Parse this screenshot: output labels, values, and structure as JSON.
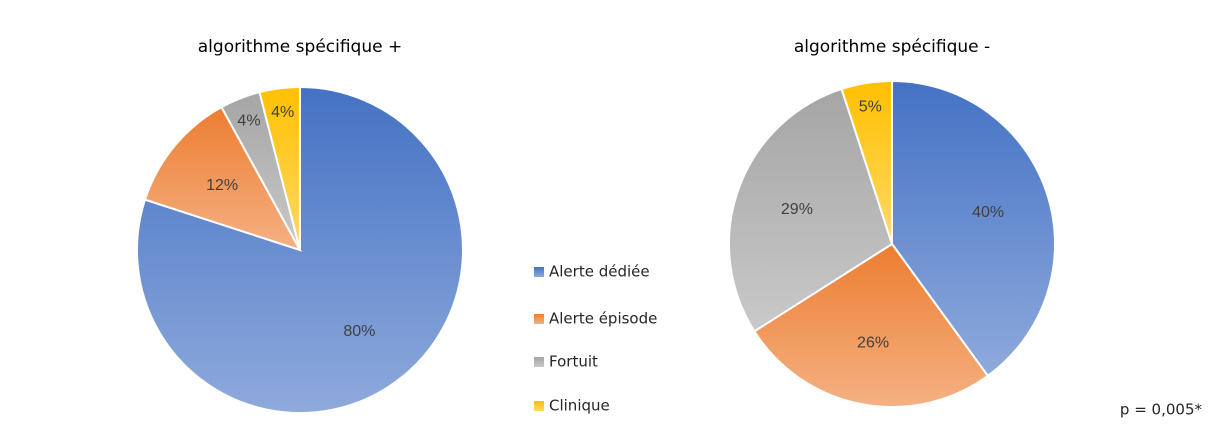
{
  "chart_data": [
    {
      "type": "pie",
      "title": "algorithme spécifique +",
      "categories": [
        "Alerte dédiée",
        "Alerte épisode",
        "Fortuit",
        "Clinique"
      ],
      "values": [
        80,
        12,
        4,
        4
      ],
      "value_labels": [
        "80%",
        "12%",
        "4%",
        "4%"
      ],
      "colors": [
        "#4472c4",
        "#ed7d31",
        "#a5a5a5",
        "#ffc000"
      ]
    },
    {
      "type": "pie",
      "title": "algorithme spécifique -",
      "categories": [
        "Alerte dédiée",
        "Alerte épisode",
        "Fortuit",
        "Clinique"
      ],
      "values": [
        40,
        26,
        29,
        5
      ],
      "value_labels": [
        "40%",
        "26%",
        "29%",
        "5%"
      ],
      "colors": [
        "#4472c4",
        "#ed7d31",
        "#a5a5a5",
        "#ffc000"
      ],
      "annotation": "p = 0,005*"
    }
  ]
}
